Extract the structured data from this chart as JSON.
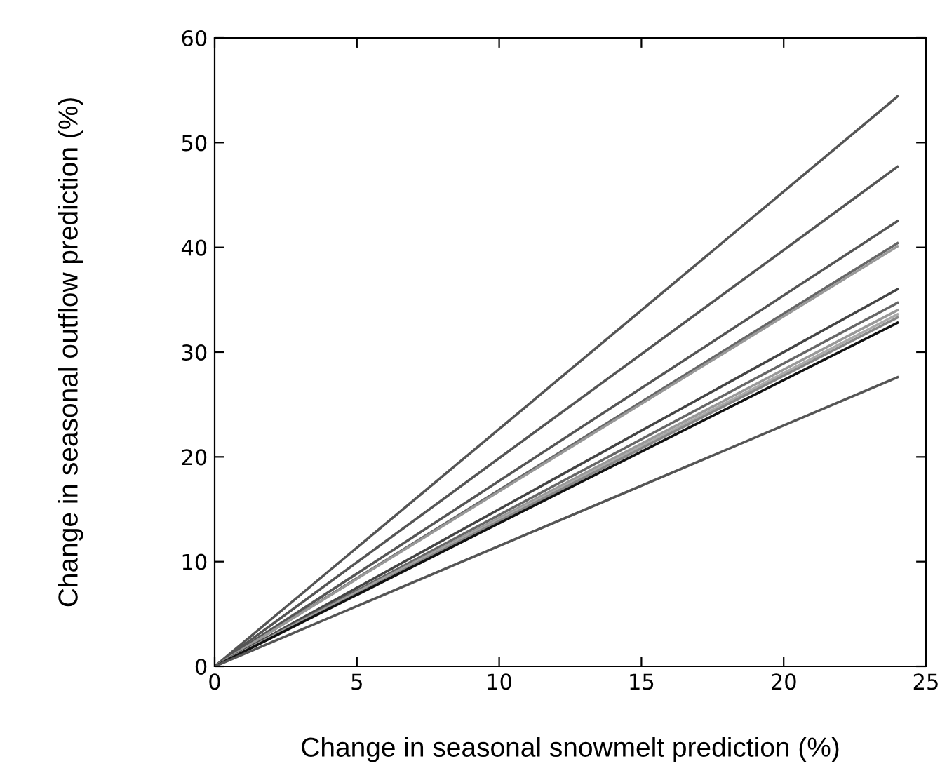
{
  "chart_data": {
    "type": "line",
    "xlabel": "Change in seasonal snowmelt prediction (%)",
    "ylabel": "Change in seasonal outflow prediction (%)",
    "x": [
      0,
      24
    ],
    "series": [
      {
        "color": "#555555",
        "values": [
          0,
          54.4
        ]
      },
      {
        "color": "#555555",
        "values": [
          0,
          47.7
        ]
      },
      {
        "color": "#555555",
        "values": [
          0,
          42.5
        ]
      },
      {
        "color": "#666666",
        "values": [
          0,
          40.4
        ]
      },
      {
        "color": "#999999",
        "values": [
          0,
          40.1
        ]
      },
      {
        "color": "#444444",
        "values": [
          0,
          36.0
        ]
      },
      {
        "color": "#666666",
        "values": [
          0,
          34.7
        ]
      },
      {
        "color": "#999999",
        "values": [
          0,
          34.0
        ]
      },
      {
        "color": "#aaaaaa",
        "values": [
          0,
          33.6
        ]
      },
      {
        "color": "#888888",
        "values": [
          0,
          33.3
        ]
      },
      {
        "color": "#111111",
        "values": [
          0,
          32.8
        ]
      },
      {
        "color": "#555555",
        "values": [
          0,
          27.6
        ]
      }
    ],
    "xlim": [
      0,
      25
    ],
    "ylim": [
      0,
      60
    ],
    "xticks": [
      0,
      5,
      10,
      15,
      20,
      25
    ],
    "yticks": [
      0,
      10,
      20,
      30,
      40,
      50,
      60
    ],
    "grid": false,
    "legend": false,
    "marker": "none",
    "line_style": "solid"
  }
}
